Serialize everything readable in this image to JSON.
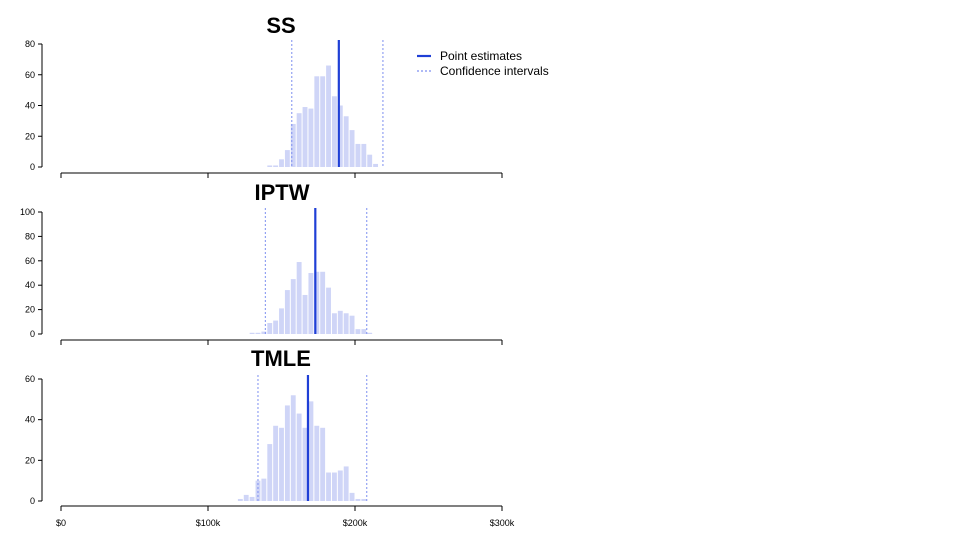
{
  "colors": {
    "bar": "#cfd5f7",
    "point_estimate": "#1f3fd6",
    "confidence_interval": "#7d8ff0",
    "axis": "#000000"
  },
  "legend": {
    "point_estimates_label": "Point estimates",
    "confidence_intervals_label": "Confidence intervals"
  },
  "x_axis": {
    "ticks": [
      0,
      100000,
      200000,
      300000
    ],
    "tick_labels": [
      "$0",
      "$100k",
      "$200k",
      "$300k"
    ]
  },
  "chart_data": [
    {
      "type": "histogram",
      "title": "SS",
      "xlim": [
        0,
        300000
      ],
      "ylim": [
        0,
        80
      ],
      "y_ticks": [
        0,
        20,
        40,
        60,
        80
      ],
      "bin_width": 4000,
      "bins_start": [
        140000,
        144000,
        148000,
        152000,
        156000,
        160000,
        164000,
        168000,
        172000,
        176000,
        180000,
        184000,
        188000,
        192000,
        196000,
        200000,
        204000,
        208000,
        212000,
        216000,
        220000,
        224000
      ],
      "values": [
        1,
        1,
        5,
        11,
        28,
        35,
        39,
        38,
        59,
        59,
        66,
        46,
        40,
        33,
        24,
        15,
        15,
        8,
        2,
        0,
        0,
        0
      ],
      "point_estimate": 189000,
      "ci": [
        157000,
        219000
      ]
    },
    {
      "type": "histogram",
      "title": "IPTW",
      "xlim": [
        0,
        300000
      ],
      "ylim": [
        0,
        100
      ],
      "y_ticks": [
        0,
        20,
        40,
        60,
        80,
        100
      ],
      "bin_width": 4000,
      "bins_start": [
        124000,
        128000,
        132000,
        136000,
        140000,
        144000,
        148000,
        152000,
        156000,
        160000,
        164000,
        168000,
        172000,
        176000,
        180000,
        184000,
        188000,
        192000,
        196000,
        200000,
        204000,
        208000,
        212000,
        216000,
        220000
      ],
      "values": [
        0,
        1,
        1,
        2,
        9,
        11,
        21,
        36,
        45,
        59,
        32,
        50,
        51,
        51,
        38,
        17,
        19,
        17,
        15,
        4,
        4,
        1,
        0,
        0,
        0
      ],
      "point_estimate": 173000,
      "ci": [
        139000,
        208000
      ]
    },
    {
      "type": "histogram",
      "title": "TMLE",
      "xlim": [
        0,
        300000
      ],
      "ylim": [
        0,
        60
      ],
      "y_ticks": [
        0,
        20,
        40,
        60
      ],
      "bin_width": 4000,
      "bins_start": [
        112000,
        116000,
        120000,
        124000,
        128000,
        132000,
        136000,
        140000,
        144000,
        148000,
        152000,
        156000,
        160000,
        164000,
        168000,
        172000,
        176000,
        180000,
        184000,
        188000,
        192000,
        196000,
        200000,
        204000,
        208000,
        212000,
        216000,
        220000,
        224000,
        228000
      ],
      "values": [
        0,
        0,
        1,
        3,
        2,
        10,
        11,
        28,
        37,
        36,
        47,
        52,
        43,
        36,
        49,
        37,
        36,
        14,
        14,
        15,
        17,
        4,
        1,
        1,
        0,
        0,
        0,
        0,
        0,
        0
      ],
      "point_estimate": 168000,
      "ci": [
        134000,
        208000
      ]
    }
  ]
}
